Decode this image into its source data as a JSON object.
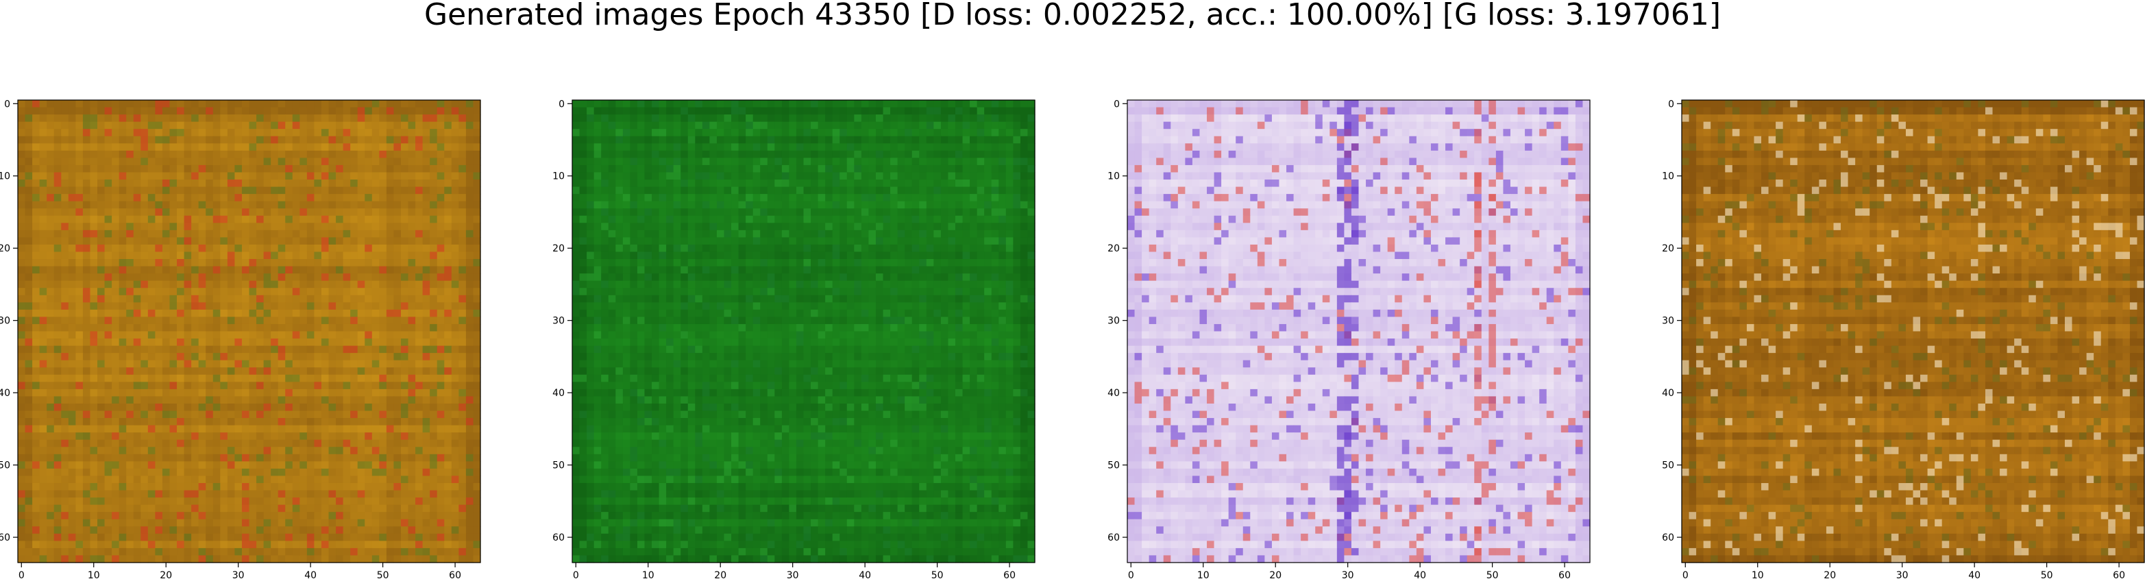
{
  "figure": {
    "title": "Generated images Epoch 43350 [D loss: 0.002252, acc.: 100.00%] [G loss: 3.197061]",
    "axes_tick_labels": {
      "x": [
        "0",
        "10",
        "20",
        "30",
        "40",
        "50",
        "60"
      ],
      "y": [
        "0",
        "10",
        "20",
        "30",
        "40",
        "50",
        "60"
      ]
    },
    "image_grid_size": [
      64,
      64
    ],
    "panels": [
      {
        "id": "panel-1",
        "palette": "yellow-orange",
        "base": "#c89018",
        "alt": "#8a5a10",
        "accent": "#d23a20",
        "green": "#5c7a20"
      },
      {
        "id": "panel-2",
        "palette": "green",
        "base": "#1e8e1e",
        "alt": "#0f5c12",
        "accent": "#1a7a2a",
        "green": "#2aa02e"
      },
      {
        "id": "panel-3",
        "palette": "pastel-white",
        "base": "#f0e8f4",
        "alt": "#c8b0e8",
        "accent": "#e0504a",
        "green": "#6a3ad0"
      },
      {
        "id": "panel-4",
        "palette": "dark-orange",
        "base": "#c8861a",
        "alt": "#7a4a0c",
        "accent": "#f8e8c8",
        "green": "#6a6a1c"
      }
    ]
  }
}
